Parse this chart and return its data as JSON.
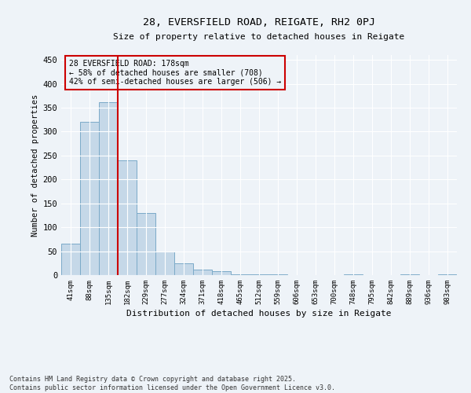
{
  "title1": "28, EVERSFIELD ROAD, REIGATE, RH2 0PJ",
  "title2": "Size of property relative to detached houses in Reigate",
  "xlabel": "Distribution of detached houses by size in Reigate",
  "ylabel": "Number of detached properties",
  "categories": [
    "41sqm",
    "88sqm",
    "135sqm",
    "182sqm",
    "229sqm",
    "277sqm",
    "324sqm",
    "371sqm",
    "418sqm",
    "465sqm",
    "512sqm",
    "559sqm",
    "606sqm",
    "653sqm",
    "700sqm",
    "748sqm",
    "795sqm",
    "842sqm",
    "889sqm",
    "936sqm",
    "983sqm"
  ],
  "values": [
    65,
    320,
    362,
    240,
    130,
    50,
    25,
    12,
    8,
    2,
    1,
    1,
    0,
    0,
    0,
    2,
    0,
    0,
    2,
    0,
    1
  ],
  "bar_color": "#c5d8e8",
  "bar_edge_color": "#7baac8",
  "highlight_color": "#cc0000",
  "ylim": [
    0,
    460
  ],
  "yticks": [
    0,
    50,
    100,
    150,
    200,
    250,
    300,
    350,
    400,
    450
  ],
  "annotation_text": "28 EVERSFIELD ROAD: 178sqm\n← 58% of detached houses are smaller (708)\n42% of semi-detached houses are larger (506) →",
  "annotation_box_color": "#cc0000",
  "bg_color": "#eef3f8",
  "grid_color": "#ffffff",
  "footer": "Contains HM Land Registry data © Crown copyright and database right 2025.\nContains public sector information licensed under the Open Government Licence v3.0."
}
